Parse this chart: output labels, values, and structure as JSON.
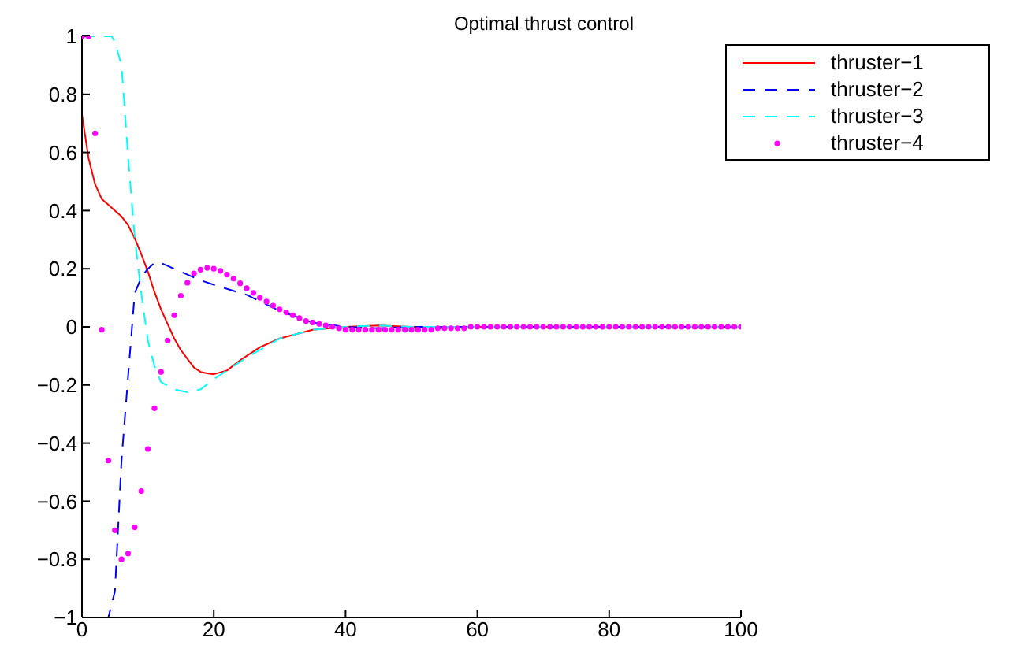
{
  "chart_data": {
    "type": "line",
    "title": "Optimal thrust control",
    "xlim": [
      0,
      100
    ],
    "ylim": [
      -1,
      1
    ],
    "xticks": [
      0,
      20,
      40,
      60,
      80,
      100
    ],
    "yticks": [
      {
        "value": -1,
        "label": "−1"
      },
      {
        "value": -0.8,
        "label": "−0.8"
      },
      {
        "value": -0.6,
        "label": "−0.6"
      },
      {
        "value": -0.4,
        "label": "−0.4"
      },
      {
        "value": -0.2,
        "label": "−0.2"
      },
      0,
      0.2,
      0.4,
      0.6,
      0.8,
      1
    ],
    "grid": false,
    "legend": "top right",
    "series": [
      {
        "name": "thruster−1",
        "color": "#ff0000",
        "line_style": "solid",
        "marker": "none",
        "x": [
          0,
          1,
          2,
          3,
          4,
          5,
          6,
          7,
          8,
          9,
          10,
          11,
          12,
          13,
          14,
          15,
          16,
          17,
          18,
          19,
          20,
          22,
          24,
          27,
          30,
          35,
          40,
          45,
          50,
          60,
          70,
          80
        ],
        "values": [
          0.73,
          0.58,
          0.49,
          0.44,
          0.42,
          0.4,
          0.38,
          0.35,
          0.305,
          0.25,
          0.19,
          0.12,
          0.06,
          0.01,
          -0.04,
          -0.08,
          -0.11,
          -0.14,
          -0.155,
          -0.16,
          -0.163,
          -0.15,
          -0.115,
          -0.07,
          -0.04,
          -0.01,
          0,
          0.005,
          0,
          0,
          0,
          0
        ]
      },
      {
        "name": "thruster−2",
        "color": "#0000ff",
        "line_style": "dashed",
        "marker": "none",
        "x": [
          0,
          4,
          5,
          6,
          7,
          8,
          9,
          10,
          11,
          12,
          14,
          16,
          18,
          20,
          25,
          30,
          35,
          40,
          45,
          50,
          60,
          70,
          80,
          90,
          100
        ],
        "values": [
          -1,
          -1,
          -0.91,
          -0.46,
          -0.17,
          0.115,
          0.17,
          0.2,
          0.22,
          0.22,
          0.2,
          0.18,
          0.16,
          0.145,
          0.11,
          0.055,
          0.015,
          0,
          -0.005,
          0,
          0,
          0,
          0,
          0,
          0
        ]
      },
      {
        "name": "thruster−3",
        "color": "#00ffff",
        "line_style": "dashed",
        "marker": "none",
        "x": [
          0,
          4.5,
          5,
          6,
          7,
          8,
          9,
          10,
          11,
          12,
          14,
          16,
          18,
          20,
          22,
          25,
          30,
          35,
          40,
          45,
          50,
          60,
          70,
          80,
          90,
          100
        ],
        "values": [
          1,
          1,
          0.98,
          0.9,
          0.585,
          0.31,
          0.115,
          -0.047,
          -0.135,
          -0.19,
          -0.215,
          -0.225,
          -0.215,
          -0.18,
          -0.15,
          -0.105,
          -0.04,
          -0.01,
          0,
          0.005,
          0,
          0,
          0,
          0,
          0,
          0
        ]
      },
      {
        "name": "thruster−4",
        "color": "#ff00ff",
        "type": "scatter",
        "marker": "circle",
        "x": [
          0,
          1,
          2,
          3,
          4,
          5,
          6,
          7,
          8,
          9,
          10,
          11,
          12,
          13,
          14,
          15,
          16,
          17,
          18,
          19,
          20,
          21,
          22,
          23,
          24,
          25,
          26,
          27,
          28,
          29,
          30,
          31,
          32,
          33,
          34,
          35,
          36,
          37,
          38,
          39,
          40,
          41,
          42,
          43,
          44,
          45,
          46,
          47,
          48,
          49,
          50,
          51,
          52,
          53,
          54,
          55,
          56,
          57,
          58,
          59,
          60,
          61,
          62,
          63,
          64,
          65,
          66,
          67,
          68,
          69,
          70,
          71,
          72,
          73,
          74,
          75,
          76,
          77,
          78,
          79,
          80,
          81,
          82,
          83,
          84,
          85,
          86,
          87,
          88,
          89,
          90,
          91,
          92,
          93,
          94,
          95,
          96,
          97,
          98,
          99,
          100
        ],
        "values": [
          1,
          1,
          0.666,
          -0.01,
          -0.46,
          -0.7,
          -0.8,
          -0.78,
          -0.69,
          -0.565,
          -0.42,
          -0.28,
          -0.155,
          -0.047,
          0.04,
          0.107,
          0.152,
          0.184,
          0.197,
          0.203,
          0.2,
          0.193,
          0.18,
          0.166,
          0.15,
          0.133,
          0.117,
          0.1,
          0.087,
          0.073,
          0.06,
          0.05,
          0.04,
          0.03,
          0.02,
          0.015,
          0.01,
          0.005,
          0,
          -0.005,
          -0.01,
          -0.01,
          -0.01,
          -0.01,
          -0.01,
          -0.01,
          -0.01,
          -0.01,
          -0.01,
          -0.01,
          -0.01,
          -0.01,
          -0.01,
          -0.01,
          -0.005,
          -0.005,
          -0.005,
          -0.005,
          -0.005,
          0,
          0,
          0,
          0,
          0,
          0,
          0,
          0,
          0,
          0,
          0,
          0,
          0,
          0,
          0,
          0,
          0,
          0,
          0,
          0,
          0,
          0,
          0,
          0,
          0,
          0,
          0,
          0,
          0,
          0,
          0,
          0,
          0,
          0,
          0,
          0,
          0,
          0,
          0,
          0,
          0,
          0
        ]
      }
    ]
  }
}
